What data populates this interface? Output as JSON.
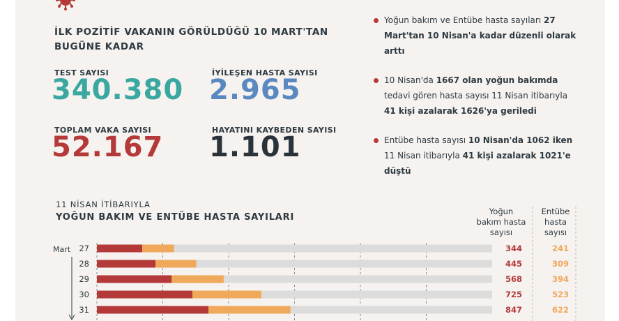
{
  "heading": "İLK POZİTİF VAKANIN GÖRÜLDÜĞÜ 10 MART'TAN BUGÜNE KADAR",
  "stats": {
    "test_label": "TEST SAYISI",
    "test_value": "340.380",
    "recovered_label": "İYİLEŞEN HASTA SAYISI",
    "recovered_value": "2.965",
    "cases_label": "TOPLAM VAKA SAYISI",
    "cases_value": "52.167",
    "deaths_label": "HAYATINI KAYBEDEN SAYISI",
    "deaths_value": "1.101"
  },
  "notes": [
    {
      "parts": [
        [
          "Yoğun bakım ve Entübe hasta sayıları ",
          false
        ],
        [
          "27",
          true
        ]
      ],
      "line2": [
        [
          "Mart'tan 10 Nisan'a kadar düzenli olarak",
          true
        ]
      ],
      "line3": [
        [
          "arttı",
          true
        ]
      ]
    },
    {
      "parts": [
        [
          "10 Nisan'da ",
          false
        ],
        [
          "1667 olan yoğun bakımda",
          true
        ]
      ],
      "line2": [
        [
          "tedavi gören hasta sayısı 11 Nisan itibarıyla",
          false
        ]
      ],
      "line3": [
        [
          "41 kişi azalarak 1626'ya geriledi",
          true
        ]
      ]
    },
    {
      "parts": [
        [
          "Entübe hasta sayısı ",
          false
        ],
        [
          "10 Nisan'da 1062 iken",
          true
        ]
      ],
      "line2": [
        [
          "11 Nisan itibarıyla ",
          false
        ],
        [
          "41 kişi azalarak 1021'e",
          true
        ]
      ],
      "line3": [
        [
          "düştü",
          true
        ]
      ]
    }
  ],
  "chart_data": {
    "type": "bar",
    "subtitle": "11 NİSAN İTİBARIYLA",
    "title": "YOĞUN BAKIM VE ENTÜBE HASTA SAYILARI",
    "month_label": "Mart",
    "categories": [
      "27",
      "28",
      "29",
      "30",
      "31"
    ],
    "series": [
      {
        "name": "Yoğun bakım hasta sayısı",
        "values": [
          344,
          445,
          568,
          725,
          847
        ],
        "color": "#b43a3a"
      },
      {
        "name": "Entübe hasta sayısı",
        "values": [
          241,
          309,
          394,
          523,
          622
        ],
        "color": "#f0a85a"
      }
    ],
    "xlim": [
      0,
      3000
    ],
    "grid": true,
    "stacked": true
  },
  "column_heads": {
    "icu": [
      "Yoğun",
      "bakım hasta",
      "sayısı"
    ],
    "intubated": [
      "Entübe",
      "hasta",
      "sayısı"
    ]
  },
  "colors": {
    "panel": "#f5f2ef",
    "icu": "#b43a3a",
    "intubated": "#f0a85a",
    "track": "#dcdcdc"
  }
}
